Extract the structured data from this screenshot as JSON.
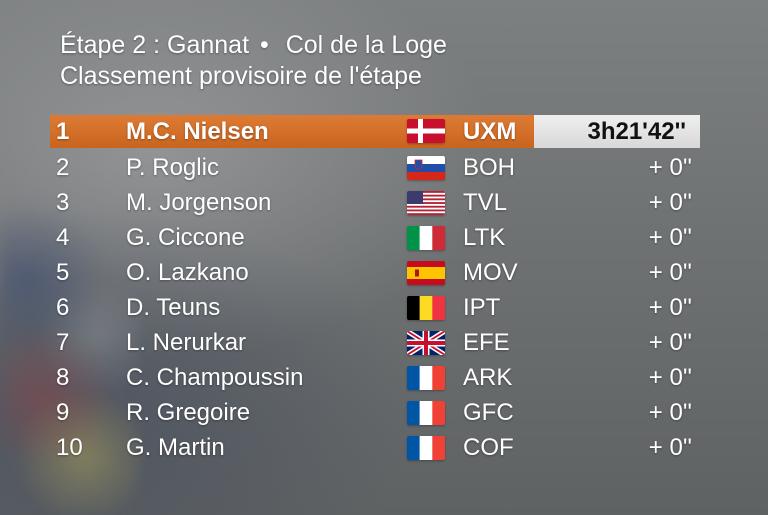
{
  "header": {
    "stage": "Étape 2 : Gannat",
    "separator": "•",
    "finish": "Col de la Loge",
    "subtitle": "Classement provisoire de l'étape"
  },
  "rows": [
    {
      "pos": "1",
      "name": "M.C. Nielsen",
      "flag": "denmark-flag-icon",
      "team": "UXM",
      "time": "3h21'42''"
    },
    {
      "pos": "2",
      "name": "P. Roglic",
      "flag": "slovenia-flag-icon",
      "team": "BOH",
      "time": "+ 0''"
    },
    {
      "pos": "3",
      "name": "M. Jorgenson",
      "flag": "usa-flag-icon",
      "team": "TVL",
      "time": "+ 0''"
    },
    {
      "pos": "4",
      "name": "G. Ciccone",
      "flag": "italy-flag-icon",
      "team": "LTK",
      "time": "+ 0''"
    },
    {
      "pos": "5",
      "name": "O. Lazkano",
      "flag": "spain-flag-icon",
      "team": "MOV",
      "time": "+ 0''"
    },
    {
      "pos": "6",
      "name": "D. Teuns",
      "flag": "belgium-flag-icon",
      "team": "IPT",
      "time": "+ 0''"
    },
    {
      "pos": "7",
      "name": "L. Nerurkar",
      "flag": "uk-flag-icon",
      "team": "EFE",
      "time": "+ 0''"
    },
    {
      "pos": "8",
      "name": "C. Champoussin",
      "flag": "france-flag-icon",
      "team": "ARK",
      "time": "+ 0''"
    },
    {
      "pos": "9",
      "name": "R. Gregoire",
      "flag": "france-flag-icon",
      "team": "GFC",
      "time": "+ 0''"
    },
    {
      "pos": "10",
      "name": "G. Martin",
      "flag": "france-flag-icon",
      "team": "COF",
      "time": "+ 0''"
    }
  ],
  "colors": {
    "leader_bar": "#d4702a",
    "time_box": "#e6e6e6",
    "text": "#ffffff"
  }
}
